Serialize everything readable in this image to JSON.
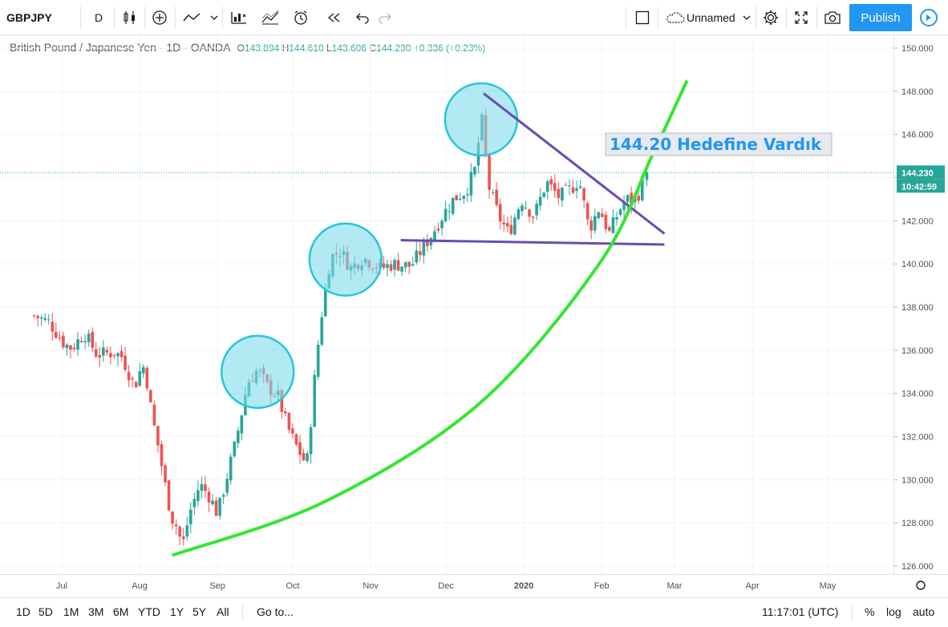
{
  "toolbar": {
    "symbol": "GBPJPY",
    "interval": "D",
    "layout_name": "Unnamed",
    "publish_label": "Publish",
    "icons": [
      "bar-style-icon",
      "add-indicator-icon",
      "line-tool-icon",
      "chevron-down-icon",
      "indicators-icon",
      "compare-icon",
      "alert-icon",
      "replay-icon",
      "undo-icon",
      "redo-icon",
      "layout-square-icon",
      "cloud-icon",
      "settings-icon",
      "fullscreen-icon",
      "camera-icon",
      "play-icon"
    ]
  },
  "legend": {
    "title": "British Pound / Japanese Yen · 1D · OANDA",
    "open_label": "O",
    "open": "143.894",
    "high_label": "H",
    "high": "144.610",
    "low_label": "L",
    "low": "143.606",
    "close_label": "C",
    "close": "144.230",
    "change": "+0.336 (+0.23%)"
  },
  "annotation": {
    "text": "144.20 Hedefine Vardık"
  },
  "price_axis": {
    "labels": [
      "150.000",
      "148.000",
      "146.000",
      "144.000",
      "142.000",
      "140.000",
      "138.000",
      "136.000",
      "134.000",
      "132.000",
      "130.000",
      "128.000",
      "126.000"
    ],
    "current_price": "144.230",
    "countdown": "10:42:59"
  },
  "time_axis": {
    "labels": [
      "Jul",
      "Aug",
      "Sep",
      "Oct",
      "Nov",
      "Dec",
      "2020",
      "Feb",
      "Mar",
      "Apr",
      "May"
    ]
  },
  "bottom_bar": {
    "ranges": [
      "1D",
      "5D",
      "1M",
      "3M",
      "6M",
      "YTD",
      "1Y",
      "5Y",
      "All"
    ],
    "goto": "Go to...",
    "clock": "11:17:01 (UTC)",
    "percent": "%",
    "log": "log",
    "auto": "auto"
  },
  "colors": {
    "up": "#26a69a",
    "down": "#ef5350",
    "circle_fill": "#7fdbea",
    "circle_stroke": "#26c6da",
    "trendline": "#6a4bb4",
    "curve": "#33e633",
    "publish": "#2196f3",
    "annotation_text": "#2196f3"
  },
  "chart_data": {
    "type": "candlestick",
    "title": "British Pound / Japanese Yen · 1D · OANDA",
    "ylim": [
      126,
      150
    ],
    "y_ticks": [
      126,
      128,
      130,
      132,
      134,
      136,
      138,
      140,
      142,
      144,
      146,
      148,
      150
    ],
    "x_ticks": [
      "Jul",
      "Aug",
      "Sep",
      "Oct",
      "Nov",
      "Dec",
      "2020",
      "Feb",
      "Mar",
      "Apr",
      "May"
    ],
    "last_close": 144.23,
    "path": [
      [
        "2019-06-20",
        137.6
      ],
      [
        "2019-06-26",
        137.3
      ],
      [
        "2019-07-02",
        136.3
      ],
      [
        "2019-07-05",
        136.1
      ],
      [
        "2019-07-10",
        136.8
      ],
      [
        "2019-07-15",
        135.8
      ],
      [
        "2019-07-22",
        135.9
      ],
      [
        "2019-07-25",
        135.7
      ],
      [
        "2019-07-30",
        134.3
      ],
      [
        "2019-08-01",
        135.0
      ],
      [
        "2019-08-03",
        135.3
      ],
      [
        "2019-08-06",
        132.9
      ],
      [
        "2019-08-08",
        131.8
      ],
      [
        "2019-08-12",
        129.2
      ],
      [
        "2019-08-14",
        128.2
      ],
      [
        "2019-08-16",
        127.8
      ],
      [
        "2019-08-18",
        126.9
      ],
      [
        "2019-08-21",
        128.5
      ],
      [
        "2019-08-25",
        129.8
      ],
      [
        "2019-08-29",
        129.2
      ],
      [
        "2019-09-01",
        128.4
      ],
      [
        "2019-09-04",
        129.8
      ],
      [
        "2019-09-08",
        131.6
      ],
      [
        "2019-09-11",
        133.3
      ],
      [
        "2019-09-13",
        134.5
      ],
      [
        "2019-09-17",
        135.1
      ],
      [
        "2019-09-21",
        134.3
      ],
      [
        "2019-09-25",
        133.9
      ],
      [
        "2019-09-29",
        132.4
      ],
      [
        "2019-10-03",
        131.4
      ],
      [
        "2019-10-06",
        130.8
      ],
      [
        "2019-10-07",
        131.0
      ],
      [
        "2019-10-09",
        133.9
      ],
      [
        "2019-10-12",
        137.3
      ],
      [
        "2019-10-16",
        140.3
      ],
      [
        "2019-10-20",
        140.6
      ],
      [
        "2019-10-24",
        139.8
      ],
      [
        "2019-10-29",
        140.3
      ],
      [
        "2019-11-05",
        139.8
      ],
      [
        "2019-11-10",
        140.0
      ],
      [
        "2019-11-17",
        139.9
      ],
      [
        "2019-11-25",
        141.3
      ],
      [
        "2019-11-30",
        142.3
      ],
      [
        "2019-12-04",
        143.0
      ],
      [
        "2019-12-09",
        143.4
      ],
      [
        "2019-12-13",
        144.5
      ],
      [
        "2019-12-15",
        147.0
      ],
      [
        "2019-12-18",
        143.6
      ],
      [
        "2019-12-22",
        142.2
      ],
      [
        "2019-12-26",
        141.4
      ],
      [
        "2019-12-31",
        143.0
      ],
      [
        "2020-01-05",
        142.2
      ],
      [
        "2020-01-10",
        143.8
      ],
      [
        "2020-01-15",
        143.1
      ],
      [
        "2020-01-20",
        143.5
      ],
      [
        "2020-01-23",
        143.9
      ],
      [
        "2020-01-27",
        141.6
      ],
      [
        "2020-01-31",
        142.6
      ],
      [
        "2020-02-04",
        141.4
      ],
      [
        "2020-02-08",
        142.5
      ],
      [
        "2020-02-11",
        143.0
      ],
      [
        "2020-02-13",
        142.9
      ],
      [
        "2020-02-16",
        143.3
      ],
      [
        "2020-02-18",
        144.2
      ]
    ],
    "annotations": {
      "circles": [
        {
          "date": "2019-09-17",
          "price": 135.0
        },
        {
          "date": "2019-10-22",
          "price": 140.2
        },
        {
          "date": "2019-12-15",
          "price": 146.7
        }
      ],
      "upper_trendline": [
        [
          "2019-12-16",
          147.9
        ],
        [
          "2020-02-26",
          141.4
        ]
      ],
      "lower_trendline": [
        [
          "2019-11-13",
          141.1
        ],
        [
          "2020-02-26",
          140.9
        ]
      ],
      "curve": [
        [
          "2019-08-14",
          126.5
        ],
        [
          "2019-10-14",
          129.0
        ],
        [
          "2019-12-14",
          133.5
        ],
        [
          "2020-01-31",
          140.0
        ],
        [
          "2020-02-21",
          145.0
        ],
        [
          "2020-03-06",
          148.5
        ]
      ],
      "current_price_line": 144.23
    }
  }
}
